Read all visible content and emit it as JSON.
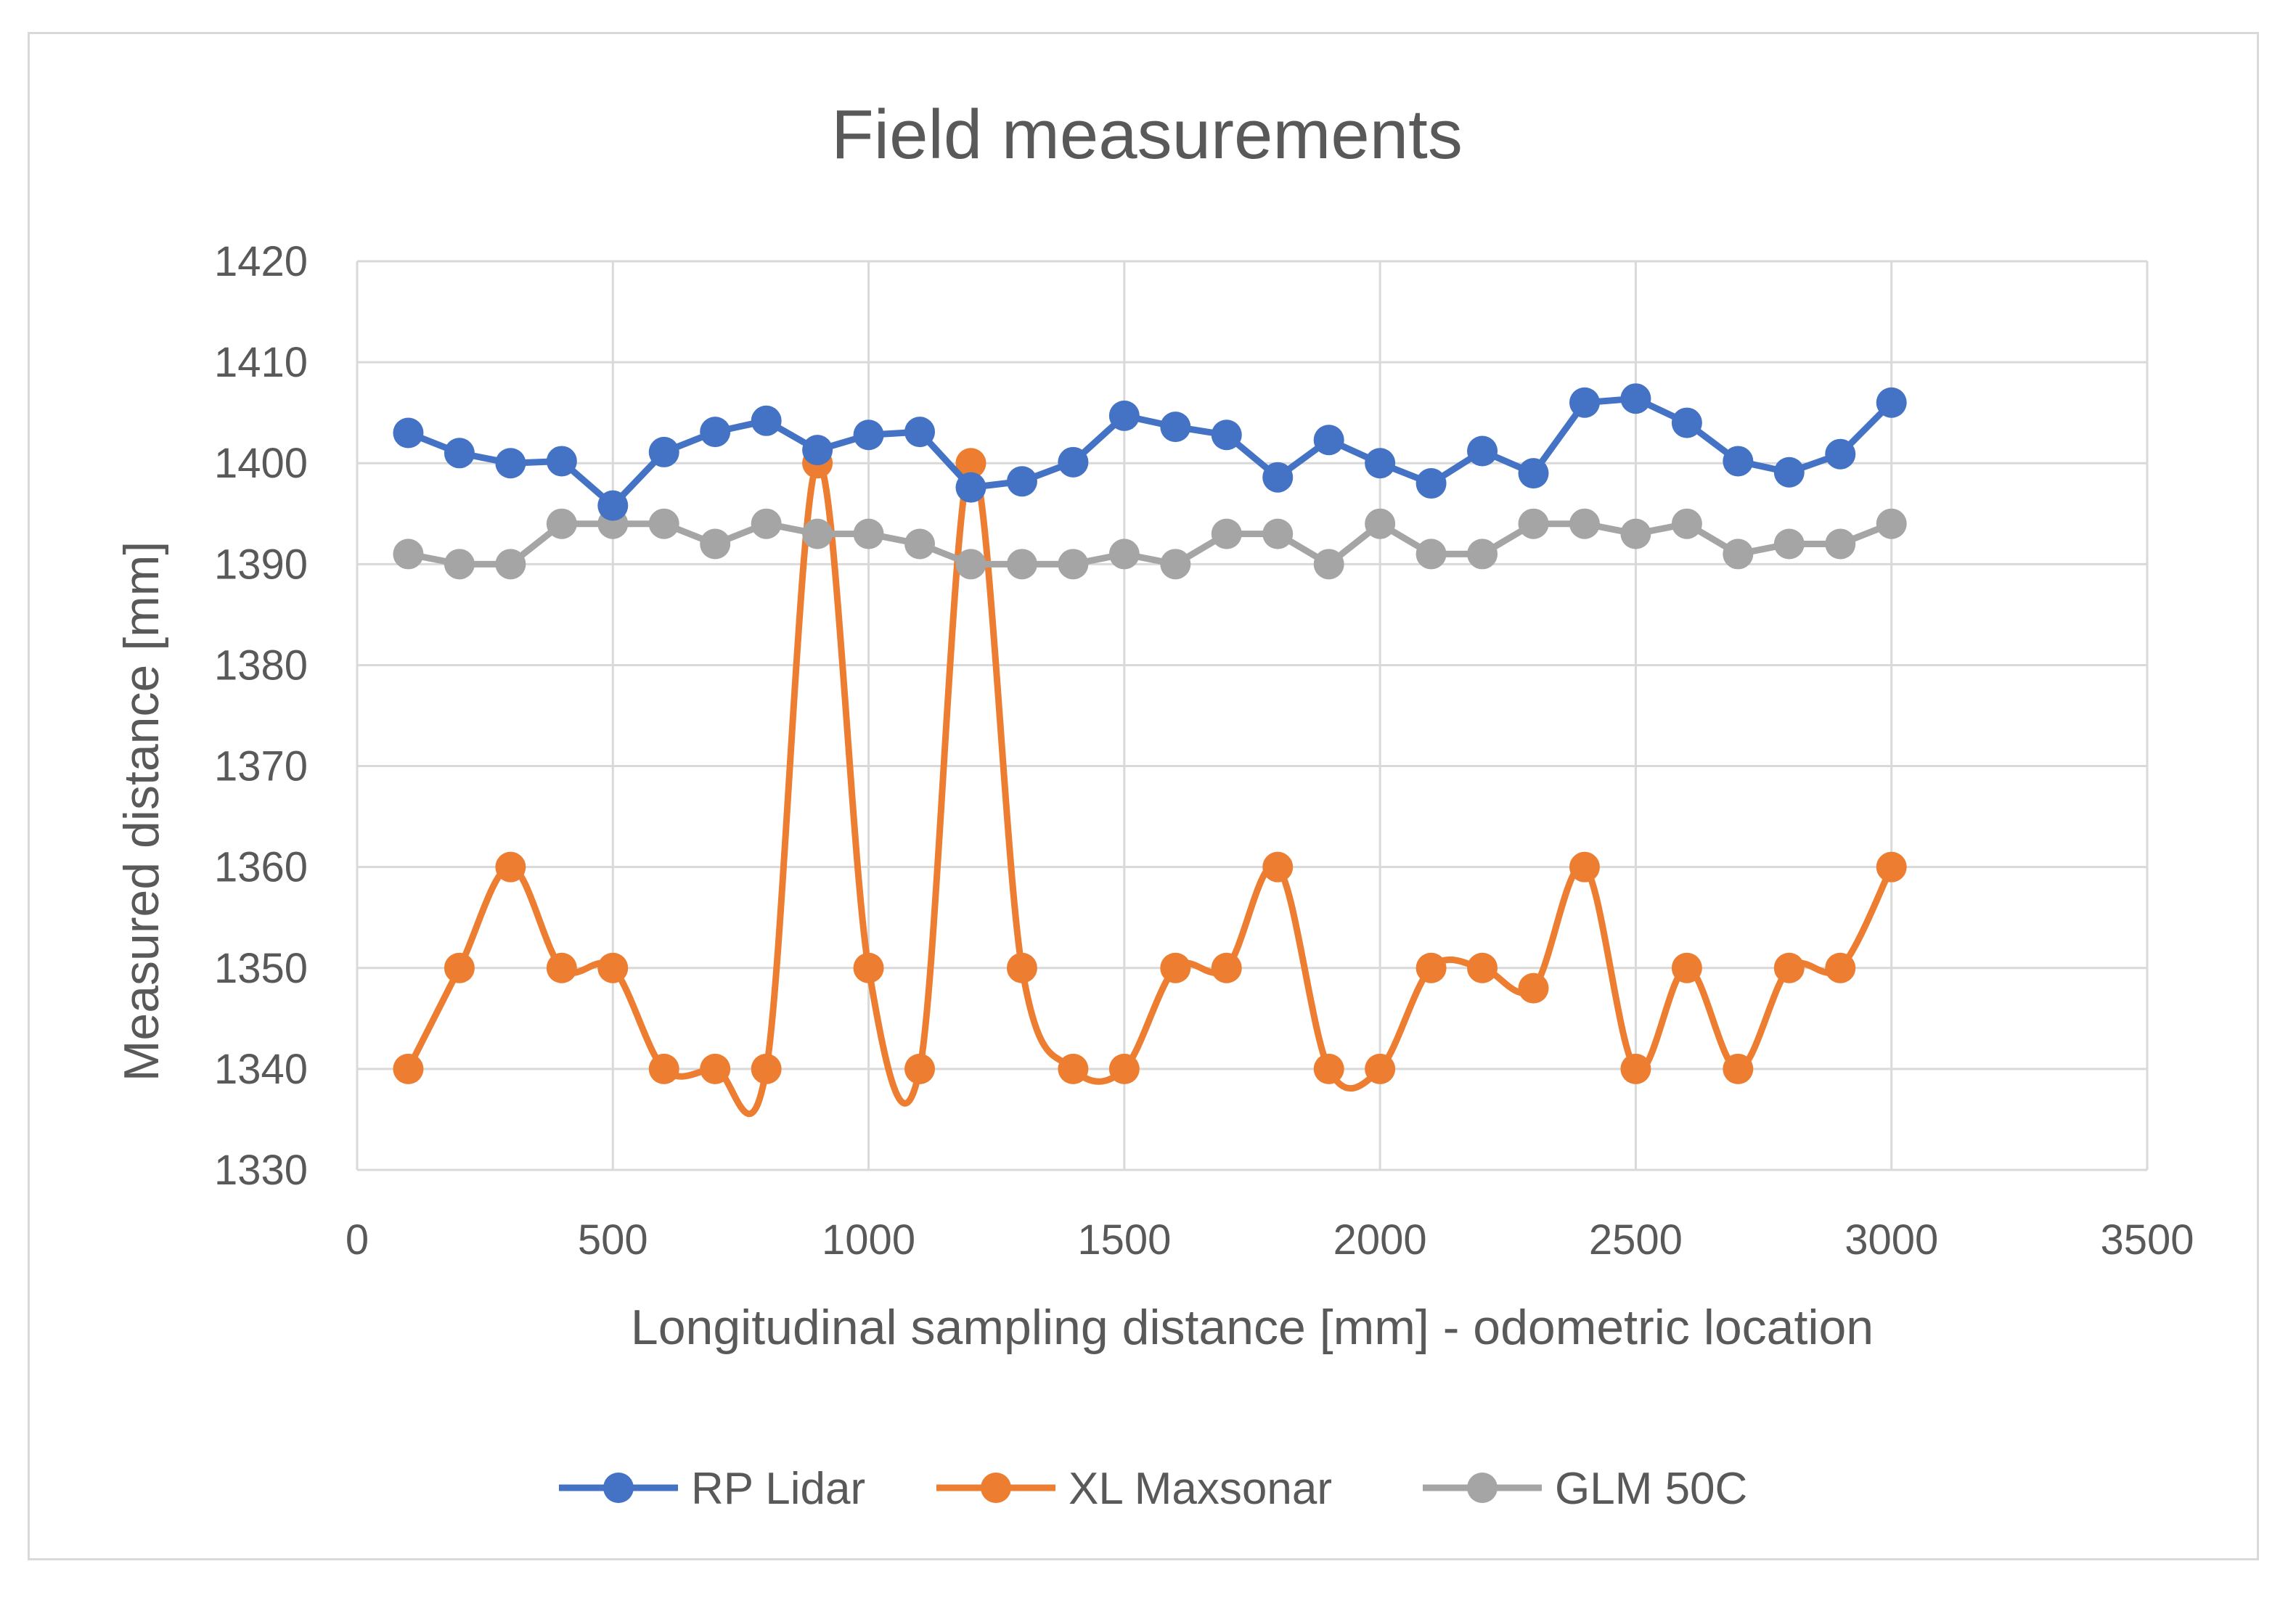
{
  "chart_data": {
    "type": "line",
    "title": "Field measurements",
    "xlabel": "Longitudinal sampling distance [mm] - odometric location",
    "ylabel": "Measured distance [mm]",
    "xlim": [
      0,
      3500
    ],
    "ylim": [
      1330,
      1420
    ],
    "xticks": [
      0,
      500,
      1000,
      1500,
      2000,
      2500,
      3000,
      3500
    ],
    "yticks": [
      1330,
      1340,
      1350,
      1360,
      1370,
      1380,
      1390,
      1400,
      1410,
      1420
    ],
    "grid": true,
    "legend_position": "bottom",
    "x": [
      100,
      200,
      300,
      400,
      500,
      600,
      700,
      800,
      900,
      1000,
      1100,
      1200,
      1300,
      1400,
      1500,
      1600,
      1700,
      1800,
      1900,
      2000,
      2100,
      2200,
      2300,
      2400,
      2500,
      2600,
      2700,
      2800,
      2900,
      3000
    ],
    "series": [
      {
        "name": "RP Lidar",
        "color": "#4472c4",
        "smooth": false,
        "values": [
          1403,
          1401,
          1400,
          1400.2,
          1395.8,
          1401.1,
          1403.1,
          1404.2,
          1401.3,
          1402.8,
          1403.1,
          1397.6,
          1398.2,
          1400.1,
          1404.7,
          1403.6,
          1402.8,
          1398.6,
          1402.3,
          1400,
          1398,
          1401.2,
          1399,
          1406,
          1406.4,
          1404,
          1400.2,
          1399.1,
          1400.9,
          1406
        ]
      },
      {
        "name": "XL Maxsonar",
        "color": "#ed7d31",
        "smooth": true,
        "values": [
          1340,
          1350,
          1360,
          1350,
          1350,
          1340,
          1340,
          1340,
          1400,
          1350,
          1340,
          1400,
          1350,
          1340,
          1340,
          1350,
          1350,
          1360,
          1340,
          1340,
          1350,
          1350,
          1348,
          1360,
          1340,
          1350,
          1340,
          1350,
          1350,
          1360
        ]
      },
      {
        "name": "GLM 50C",
        "color": "#a5a5a5",
        "smooth": false,
        "values": [
          1391,
          1390,
          1390,
          1394,
          1394,
          1394,
          1392,
          1394,
          1393,
          1393,
          1392,
          1390,
          1390,
          1390,
          1391,
          1390,
          1393,
          1393,
          1390,
          1394,
          1391,
          1391,
          1394,
          1394,
          1393,
          1394,
          1391,
          1392,
          1392,
          1394
        ]
      }
    ]
  }
}
